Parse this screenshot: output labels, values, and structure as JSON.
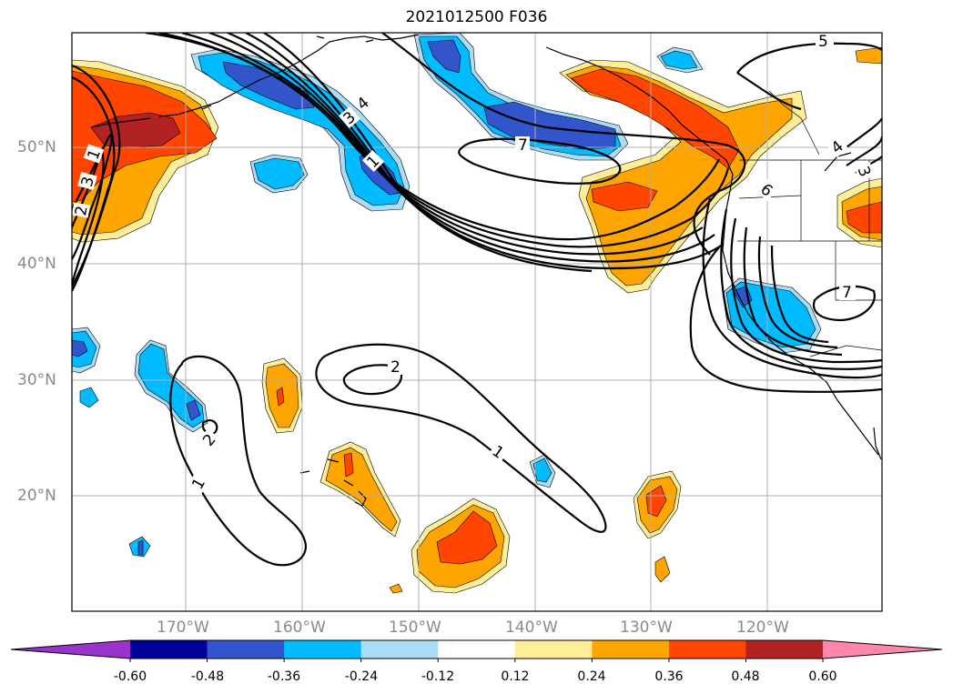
{
  "title": "2021012500 F036",
  "map": {
    "lat_labels": [
      "50°N",
      "40°N",
      "30°N",
      "20°N"
    ],
    "lon_labels": [
      "170°W",
      "160°W",
      "150°W",
      "140°W",
      "130°W",
      "120°W"
    ],
    "gridlines": true,
    "contour_labels": [
      "5",
      "4",
      "3",
      "2",
      "1",
      "7",
      "4",
      "3",
      "6",
      "7",
      "2",
      "1",
      "2",
      "1",
      "1",
      "2",
      "3"
    ]
  },
  "colorbar": {
    "ticks": [
      "-0.60",
      "-0.48",
      "-0.36",
      "-0.24",
      "-0.12",
      "0.12",
      "0.24",
      "0.36",
      "0.48",
      "0.60"
    ],
    "colors": [
      "#9933cc",
      "#000099",
      "#3355cc",
      "#00bbff",
      "#aaddf5",
      "#ffffff",
      "#ffee99",
      "#ffa500",
      "#ff4500",
      "#b22222",
      "#ff88aa"
    ],
    "extend": "both"
  }
}
